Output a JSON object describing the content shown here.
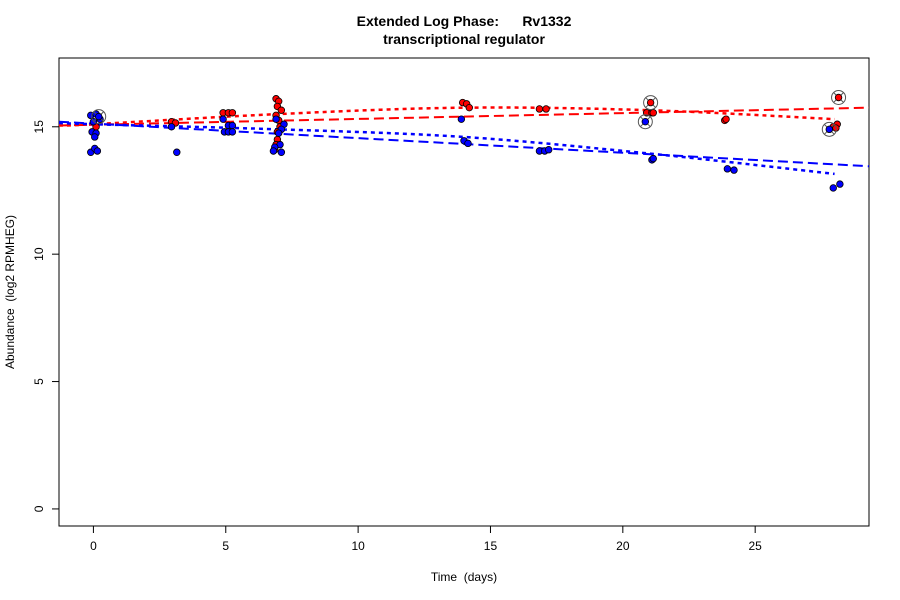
{
  "chart_data": {
    "type": "scatter",
    "title": "Extended Log Phase:      Rv1332",
    "subtitle": "transcriptional regulator",
    "xlabel": "Time  (days)",
    "ylabel": "Abundance  (log2 RPMHEG)",
    "xlim": [
      -1.3,
      29.3
    ],
    "ylim": [
      -0.67,
      17.7
    ],
    "xticks": [
      0,
      5,
      10,
      15,
      20,
      25
    ],
    "yticks": [
      0,
      5,
      10,
      15
    ],
    "grid": false,
    "colors": {
      "red": "#ff0000",
      "blue": "#0000ff",
      "ring": "#555555"
    },
    "series": [
      {
        "color": "#ff0000",
        "points": [
          [
            0.1,
            15.0
          ],
          [
            2.95,
            15.2
          ],
          [
            3.1,
            15.15
          ],
          [
            4.9,
            15.55
          ],
          [
            5.1,
            15.55
          ],
          [
            5.25,
            15.55
          ],
          [
            6.9,
            16.1
          ],
          [
            7.0,
            16.0
          ],
          [
            6.95,
            15.8
          ],
          [
            7.1,
            15.65
          ],
          [
            6.9,
            15.45
          ],
          [
            7.0,
            15.25
          ],
          [
            7.05,
            15.0
          ],
          [
            6.95,
            14.8
          ],
          [
            6.95,
            14.5
          ],
          [
            6.9,
            14.3
          ],
          [
            6.85,
            14.1
          ],
          [
            13.95,
            15.95
          ],
          [
            14.1,
            15.9
          ],
          [
            14.2,
            15.75
          ],
          [
            16.85,
            15.7
          ],
          [
            17.1,
            15.7
          ],
          [
            20.9,
            15.55
          ],
          [
            21.1,
            15.55
          ],
          [
            21.15,
            15.55
          ],
          [
            21.05,
            15.95,
            "ring"
          ],
          [
            23.85,
            15.25
          ],
          [
            23.9,
            15.3
          ],
          [
            27.95,
            15.0
          ],
          [
            28.1,
            15.1
          ],
          [
            28.05,
            14.95
          ],
          [
            28.15,
            16.15,
            "ring"
          ]
        ],
        "linear_fit": [
          [
            -1.3,
            15.05
          ],
          [
            29.3,
            15.75
          ]
        ],
        "quadratic_fit": [
          [
            -1.3,
            15.05
          ],
          [
            0,
            15.1
          ],
          [
            7,
            15.5
          ],
          [
            14,
            15.75
          ],
          [
            21,
            15.65
          ],
          [
            28,
            15.3
          ]
        ]
      },
      {
        "color": "#0000ff",
        "points": [
          [
            -0.1,
            15.45
          ],
          [
            0.1,
            15.5
          ],
          [
            0.25,
            15.3
          ],
          [
            0.0,
            15.2
          ],
          [
            0.2,
            15.4,
            "ring"
          ],
          [
            -0.05,
            14.8
          ],
          [
            0.1,
            14.75
          ],
          [
            0.05,
            14.6
          ],
          [
            -0.1,
            14.0
          ],
          [
            0.05,
            14.15
          ],
          [
            0.15,
            14.05
          ],
          [
            2.95,
            15.0
          ],
          [
            3.15,
            14.0
          ],
          [
            4.9,
            15.3
          ],
          [
            5.1,
            15.05
          ],
          [
            5.25,
            15.05
          ],
          [
            4.95,
            14.8
          ],
          [
            5.1,
            14.8
          ],
          [
            5.25,
            14.8
          ],
          [
            6.9,
            15.3
          ],
          [
            7.2,
            15.1
          ],
          [
            7.1,
            14.9
          ],
          [
            7.0,
            14.75
          ],
          [
            7.05,
            14.3
          ],
          [
            6.85,
            14.2
          ],
          [
            7.1,
            14.0
          ],
          [
            6.8,
            14.05
          ],
          [
            13.9,
            15.3
          ],
          [
            14.0,
            14.45
          ],
          [
            14.15,
            14.35
          ],
          [
            16.85,
            14.05
          ],
          [
            17.05,
            14.05
          ],
          [
            17.2,
            14.1
          ],
          [
            20.85,
            15.2,
            "ring"
          ],
          [
            21.1,
            13.7
          ],
          [
            21.15,
            13.75
          ],
          [
            23.95,
            13.35
          ],
          [
            24.2,
            13.3
          ],
          [
            27.8,
            14.9,
            "ring"
          ],
          [
            27.95,
            12.6
          ],
          [
            28.2,
            12.75
          ]
        ],
        "linear_fit": [
          [
            -1.3,
            15.2
          ],
          [
            29.3,
            13.45
          ]
        ],
        "quadratic_fit": [
          [
            -1.3,
            15.15
          ],
          [
            0,
            15.1
          ],
          [
            7,
            14.9
          ],
          [
            14,
            14.6
          ],
          [
            21,
            13.95
          ],
          [
            28,
            13.15
          ]
        ]
      }
    ]
  }
}
